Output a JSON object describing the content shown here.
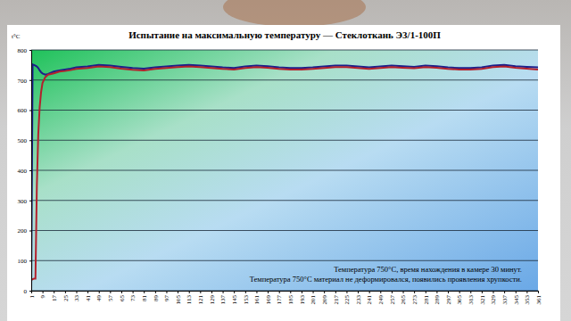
{
  "chart_data": {
    "type": "line",
    "title": "Испытание на максимальную температуру — Стеклоткань Э3/1-100П",
    "y_label": "t°C",
    "annotations": [
      "Температура 750°С, время нахождения в камере 30 минут.",
      "Температура 750°С материал не деформировался, появились проявления хрупкости."
    ],
    "x": [
      1,
      2,
      3,
      4,
      5,
      6,
      7,
      8,
      9,
      11,
      13,
      17,
      21,
      25,
      29,
      33,
      41,
      49,
      57,
      65,
      73,
      81,
      89,
      97,
      105,
      113,
      121,
      129,
      137,
      145,
      153,
      161,
      169,
      177,
      185,
      193,
      201,
      209,
      217,
      225,
      233,
      241,
      249,
      257,
      265,
      273,
      281,
      289,
      297,
      305,
      313,
      321,
      329,
      337,
      345,
      353,
      361
    ],
    "series": [
      {
        "color": "#1c1f8a",
        "values": [
          0,
          752,
          750,
          748,
          745,
          740,
          732,
          726,
          722,
          718,
          720,
          728,
          732,
          735,
          738,
          742,
          745,
          750,
          748,
          744,
          740,
          738,
          742,
          745,
          748,
          750,
          748,
          745,
          742,
          740,
          745,
          748,
          746,
          742,
          740,
          740,
          742,
          745,
          748,
          748,
          745,
          742,
          745,
          748,
          746,
          744,
          748,
          746,
          742,
          740,
          740,
          742,
          748,
          750,
          746,
          744,
          742
        ]
      },
      {
        "color": "#b3202c",
        "values": [
          35,
          38,
          40,
          40,
          350,
          520,
          610,
          660,
          690,
          710,
          718,
          722,
          728,
          730,
          733,
          737,
          740,
          745,
          743,
          738,
          734,
          732,
          737,
          740,
          743,
          745,
          743,
          740,
          737,
          735,
          740,
          743,
          741,
          737,
          735,
          735,
          737,
          740,
          743,
          743,
          740,
          737,
          740,
          743,
          741,
          739,
          743,
          741,
          737,
          735,
          735,
          737,
          743,
          745,
          741,
          738,
          735
        ]
      }
    ],
    "xlim": [
      1,
      361
    ],
    "xticks": [
      1,
      9,
      17,
      25,
      33,
      41,
      49,
      57,
      65,
      73,
      81,
      89,
      97,
      105,
      113,
      121,
      129,
      137,
      145,
      153,
      161,
      169,
      177,
      185,
      193,
      201,
      209,
      217,
      225,
      233,
      241,
      249,
      257,
      265,
      273,
      281,
      289,
      297,
      305,
      313,
      321,
      329,
      337,
      345,
      353,
      361
    ],
    "ylim": [
      0,
      800
    ],
    "yticks": [
      0,
      100,
      200,
      300,
      400,
      500,
      600,
      700,
      800
    ],
    "grid": true
  }
}
